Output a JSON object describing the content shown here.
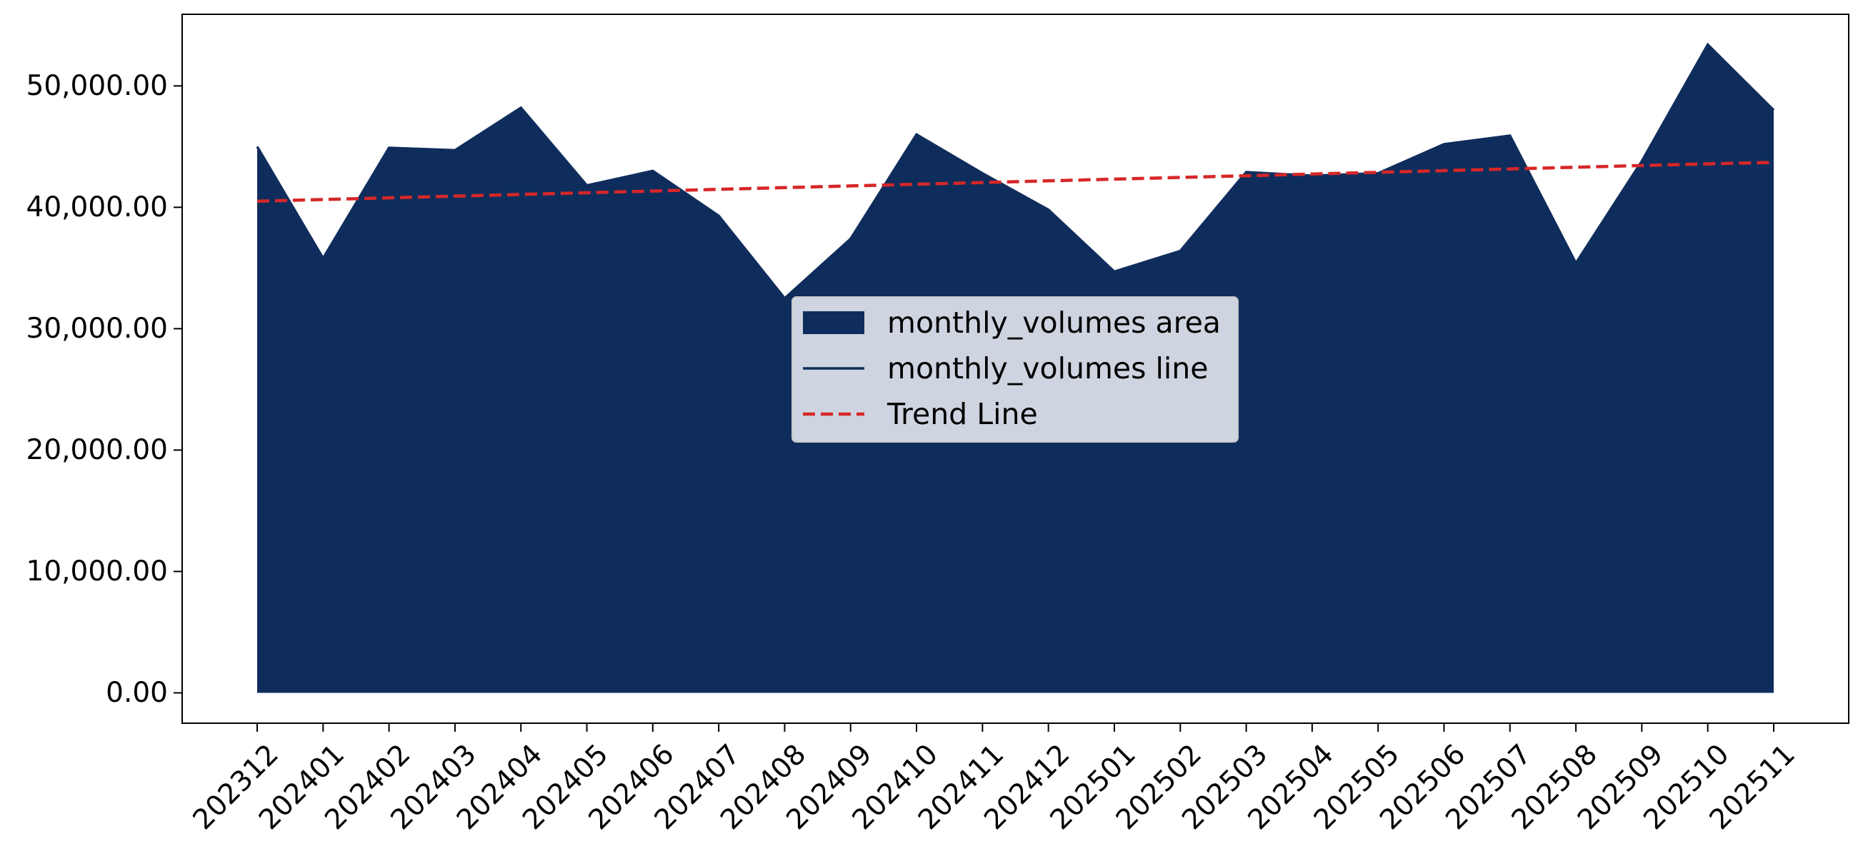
{
  "chart_data": {
    "type": "area",
    "title": "",
    "xlabel": "",
    "ylabel": "",
    "categories": [
      "202312",
      "202401",
      "202402",
      "202403",
      "202404",
      "202405",
      "202406",
      "202407",
      "202408",
      "202409",
      "202410",
      "202411",
      "202412",
      "202501",
      "202502",
      "202503",
      "202504",
      "202505",
      "202506",
      "202507",
      "202508",
      "202509",
      "202510",
      "202511"
    ],
    "series": [
      {
        "name": "monthly_volumes area",
        "kind": "area",
        "color": "#0f2d5c",
        "values": [
          45000,
          35800,
          44900,
          44700,
          48200,
          41800,
          43000,
          39300,
          32500,
          37400,
          46000,
          42800,
          39800,
          34700,
          36400,
          42900,
          42600,
          42800,
          45200,
          45900,
          35400,
          43800,
          53400,
          48000
        ]
      },
      {
        "name": "monthly_volumes line",
        "kind": "line",
        "color": "#0f2d5c",
        "values": [
          45000,
          35800,
          44900,
          44700,
          48200,
          41800,
          43000,
          39300,
          32500,
          37400,
          46000,
          42800,
          39800,
          34700,
          36400,
          42900,
          42600,
          42800,
          45200,
          45900,
          35400,
          43800,
          53400,
          48000
        ]
      },
      {
        "name": "Trend Line",
        "kind": "line",
        "dashed": true,
        "color": "#d62728",
        "values": [
          40500,
          40640,
          40780,
          40920,
          41060,
          41200,
          41340,
          41480,
          41620,
          41760,
          41900,
          42040,
          42180,
          42320,
          42460,
          42600,
          42740,
          42880,
          43020,
          43160,
          43300,
          43440,
          43580,
          43700
        ]
      }
    ],
    "yticks": [
      0,
      10000,
      20000,
      30000,
      40000,
      50000
    ],
    "ytick_labels": [
      "0.00",
      "10,000.00",
      "20,000.00",
      "30,000.00",
      "40,000.00",
      "50,000.00"
    ],
    "ylim": [
      -2500,
      55900
    ],
    "grid": false,
    "legend": {
      "placement": "center",
      "entries": [
        "monthly_volumes area",
        "monthly_volumes line",
        "Trend Line"
      ]
    }
  }
}
